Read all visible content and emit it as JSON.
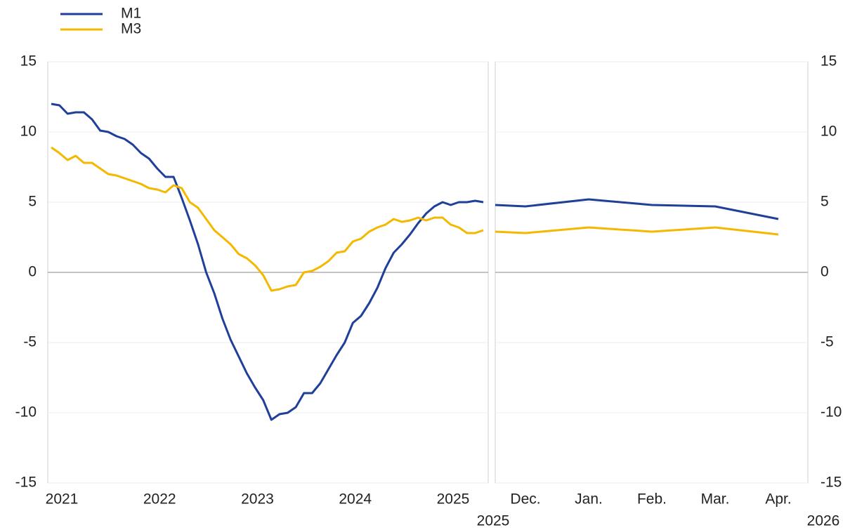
{
  "chart_data": [
    {
      "type": "line",
      "categories": [
        "2021",
        null,
        null,
        null,
        null,
        null,
        null,
        null,
        null,
        null,
        null,
        null,
        "2022",
        null,
        null,
        null,
        null,
        null,
        null,
        null,
        null,
        null,
        null,
        null,
        "2023",
        null,
        null,
        null,
        null,
        null,
        null,
        null,
        null,
        null,
        null,
        null,
        "2024",
        null,
        null,
        null,
        null,
        null,
        null,
        null,
        null,
        null,
        null,
        null,
        "2025",
        null,
        null,
        null,
        null,
        null
      ],
      "series": [
        {
          "name": "M1",
          "color": "#1f3f99",
          "values": [
            12.0,
            11.9,
            11.3,
            11.4,
            11.4,
            10.9,
            10.1,
            10.0,
            9.7,
            9.5,
            9.1,
            8.5,
            8.1,
            7.4,
            6.8,
            6.8,
            5.3,
            3.7,
            2.0,
            0.0,
            -1.5,
            -3.3,
            -4.8,
            -6.0,
            -7.2,
            -8.2,
            -9.1,
            -10.5,
            -10.1,
            -10.0,
            -9.6,
            -8.6,
            -8.6,
            -7.9,
            -6.9,
            -5.9,
            -5.0,
            -3.6,
            -3.1,
            -2.2,
            -1.1,
            0.3,
            1.4,
            2.0,
            2.7,
            3.5,
            4.2,
            4.7,
            5.0,
            4.8,
            5.0,
            5.0,
            5.1,
            5.0
          ]
        },
        {
          "name": "M3",
          "color": "#f5b800",
          "values": [
            8.9,
            8.5,
            8.0,
            8.3,
            7.8,
            7.8,
            7.4,
            7.0,
            6.9,
            6.7,
            6.5,
            6.3,
            6.0,
            5.9,
            5.7,
            6.2,
            6.0,
            5.0,
            4.6,
            3.8,
            3.0,
            2.5,
            2.0,
            1.3,
            1.0,
            0.5,
            -0.2,
            -1.3,
            -1.2,
            -1.0,
            -0.9,
            0.0,
            0.1,
            0.4,
            0.8,
            1.4,
            1.5,
            2.2,
            2.4,
            2.9,
            3.2,
            3.4,
            3.8,
            3.6,
            3.7,
            3.9,
            3.7,
            3.9,
            3.9,
            3.4,
            3.2,
            2.8,
            2.8,
            3.0
          ]
        }
      ],
      "ylim": [
        -15,
        15
      ],
      "yticks": [
        -15,
        -10,
        -5,
        0,
        5,
        10,
        15
      ],
      "grid": true,
      "legend": "top-left"
    },
    {
      "type": "line",
      "categories": [
        null,
        "Dec.",
        "Jan.",
        "Feb.",
        "Mar.",
        "Apr."
      ],
      "annotations": [
        "2025",
        "2026"
      ],
      "series": [
        {
          "name": "M1",
          "color": "#1f3f99",
          "axis": "y2",
          "values": [
            4.8,
            4.7,
            5.2,
            4.8,
            4.7,
            3.8
          ]
        },
        {
          "name": "M3",
          "color": "#f5b800",
          "axis": "y2",
          "values": [
            2.9,
            2.8,
            3.2,
            2.9,
            3.2,
            2.7
          ]
        }
      ],
      "y2lim": [
        -15,
        15
      ],
      "y2ticks": [
        -15,
        -10,
        -5,
        0,
        5,
        10,
        15
      ],
      "grid": true
    }
  ]
}
